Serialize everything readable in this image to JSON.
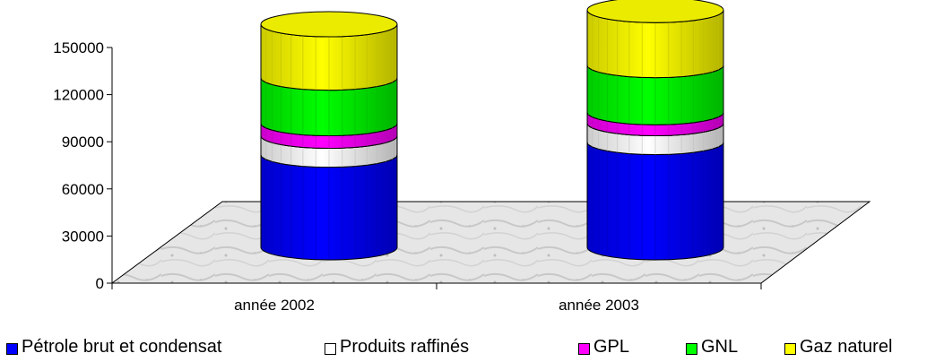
{
  "chart_data": {
    "type": "bar",
    "style": "3d-stacked-cylinder",
    "categories": [
      "année 2002",
      "année 2003"
    ],
    "series": [
      {
        "name": "Pétrole brut et condensat",
        "color": "#0000ff",
        "values": [
          59000,
          67000
        ]
      },
      {
        "name": "Produits raffinés",
        "color": "#ffffff",
        "values": [
          12000,
          12000
        ]
      },
      {
        "name": "GPL",
        "color": "#ff00ff",
        "values": [
          8000,
          7000
        ]
      },
      {
        "name": "GNL",
        "color": "#00ff00",
        "values": [
          29000,
          30000
        ]
      },
      {
        "name": "Gaz naturel",
        "color": "#ffff00",
        "values": [
          34000,
          35000
        ]
      }
    ],
    "y_ticks": [
      "0",
      "30000",
      "60000",
      "90000",
      "120000",
      "150000"
    ],
    "ylim": [
      0,
      150000
    ],
    "grid": false,
    "legend_position": "bottom",
    "title": "",
    "xlabel": "",
    "ylabel": ""
  }
}
